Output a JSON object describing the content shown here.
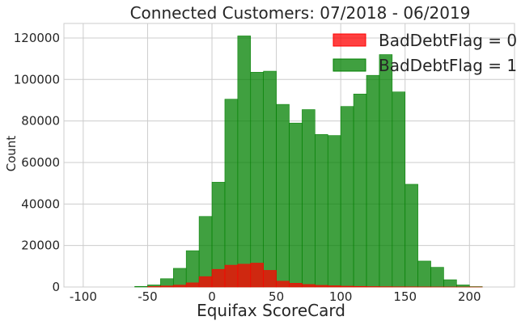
{
  "chart_data": {
    "type": "histogram",
    "title": "Connected Customers: 07/2018 - 06/2019",
    "xlabel": "Equifax  ScoreCard",
    "ylabel": "Count",
    "xlim": [
      -115,
      235
    ],
    "ylim": [
      0,
      127000
    ],
    "xticks": [
      -100,
      -50,
      0,
      50,
      100,
      150,
      200
    ],
    "yticks": [
      0,
      20000,
      40000,
      60000,
      80000,
      100000,
      120000
    ],
    "grid": true,
    "legend_position": "top-right",
    "series": [
      {
        "name": "BadDebtFlag = 0",
        "color": "#ff0000",
        "bins": [
          -50,
          -40,
          -30,
          -20,
          -10,
          0,
          10,
          20,
          30,
          40,
          50,
          60,
          70,
          80,
          90,
          100,
          110,
          120,
          130,
          140,
          150,
          160,
          170,
          180,
          190,
          200,
          210
        ],
        "values": [
          200,
          500,
          900,
          2000,
          5000,
          8500,
          10500,
          11000,
          11500,
          8000,
          2800,
          1800,
          1200,
          800,
          600,
          400,
          300,
          200,
          150,
          100,
          80,
          50,
          30,
          20,
          10,
          5
        ]
      },
      {
        "name": "BadDebtFlag = 1",
        "color": "#008000",
        "bins": [
          -60,
          -50,
          -40,
          -30,
          -20,
          -10,
          0,
          10,
          20,
          30,
          40,
          50,
          60,
          70,
          80,
          90,
          100,
          110,
          120,
          130,
          140,
          150,
          160,
          170,
          180,
          190,
          200,
          210
        ],
        "values": [
          300,
          1000,
          4000,
          9000,
          17500,
          34000,
          50500,
          90500,
          121000,
          103500,
          104000,
          88000,
          79000,
          85500,
          73500,
          73000,
          87000,
          93000,
          102000,
          112000,
          94000,
          49500,
          12500,
          9500,
          3500,
          1000,
          200
        ]
      }
    ]
  }
}
